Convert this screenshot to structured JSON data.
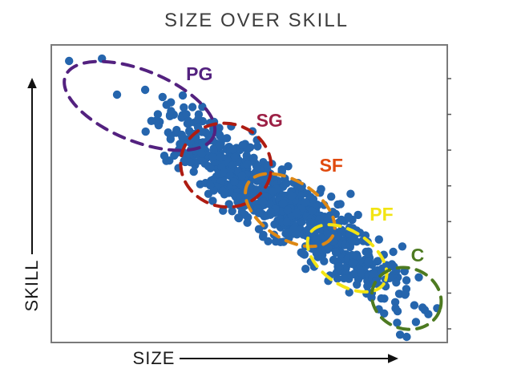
{
  "title": "SIZE OVER SKILL",
  "x_axis": {
    "label": "SIZE",
    "direction": "arrow pointing right (increasing size)"
  },
  "y_axis": {
    "label": "SKILL",
    "direction": "arrow pointing up (increasing skill)"
  },
  "style": {
    "background": "#ffffff",
    "title_color": "#3d3d3d",
    "axis_text_color": "#1c1c1c",
    "arrow_color": "#111111",
    "plot_border_color": "#7a7a7a",
    "tick_color": "#555555"
  },
  "chart_data": {
    "type": "scatter",
    "title": "SIZE OVER SKILL",
    "xlabel": "SIZE",
    "ylabel": "SKILL",
    "axes_style": "qualitative axes, no numeric tick labels; arrows mark increasing direction",
    "trend": "dense diagonal band, negative correlation: skill decreases as size increases",
    "point_color": "#2565ad",
    "point_radius_px": 5.2,
    "right_spine_ticks": {
      "side": "right",
      "count": 8
    },
    "clusters": [
      {
        "x": 0.312,
        "y": 0.752,
        "sx": 0.04,
        "sy": 0.038,
        "n": 35
      },
      {
        "x": 0.381,
        "y": 0.658,
        "sx": 0.04,
        "sy": 0.043,
        "n": 90
      },
      {
        "x": 0.457,
        "y": 0.577,
        "sx": 0.045,
        "sy": 0.046,
        "n": 140
      },
      {
        "x": 0.538,
        "y": 0.496,
        "sx": 0.049,
        "sy": 0.046,
        "n": 160
      },
      {
        "x": 0.623,
        "y": 0.423,
        "sx": 0.049,
        "sy": 0.046,
        "n": 150
      },
      {
        "x": 0.704,
        "y": 0.342,
        "sx": 0.047,
        "sy": 0.043,
        "n": 120
      },
      {
        "x": 0.781,
        "y": 0.261,
        "sx": 0.04,
        "sy": 0.04,
        "n": 75
      },
      {
        "x": 0.838,
        "y": 0.202,
        "sx": 0.036,
        "sy": 0.038,
        "n": 35
      },
      {
        "x": 0.893,
        "y": 0.132,
        "sx": 0.053,
        "sy": 0.054,
        "n": 16
      }
    ],
    "outlier_points": [
      {
        "x": 0.045,
        "y": 0.946
      },
      {
        "x": 0.128,
        "y": 0.954
      },
      {
        "x": 0.166,
        "y": 0.833
      },
      {
        "x": 0.237,
        "y": 0.849
      },
      {
        "x": 0.281,
        "y": 0.825
      }
    ],
    "groups": [
      {
        "label": "PG",
        "label_color": "#53217f",
        "ellipse_color": "#53217f",
        "ellipse": {
          "cx": 0.223,
          "cy": 0.795,
          "rx": 0.202,
          "ry": 0.119,
          "rot": 22
        },
        "label_pos": {
          "x": 0.374,
          "y": 0.903
        }
      },
      {
        "label": "SG",
        "label_color": "#9c2045",
        "ellipse_color": "#ae1c12",
        "ellipse": {
          "cx": 0.441,
          "cy": 0.596,
          "rx": 0.115,
          "ry": 0.14,
          "rot": 15
        },
        "label_pos": {
          "x": 0.551,
          "y": 0.747
        }
      },
      {
        "label": "SF",
        "label_color": "#e04a0e",
        "ellipse_color": "#dc8714",
        "ellipse": {
          "cx": 0.603,
          "cy": 0.445,
          "rx": 0.126,
          "ry": 0.097,
          "rot": 33
        },
        "label_pos": {
          "x": 0.707,
          "y": 0.596
        }
      },
      {
        "label": "PF",
        "label_color": "#f2e413",
        "ellipse_color": "#f2e413",
        "ellipse": {
          "cx": 0.747,
          "cy": 0.283,
          "rx": 0.113,
          "ry": 0.089,
          "rot": 35
        },
        "label_pos": {
          "x": 0.834,
          "y": 0.431
        }
      },
      {
        "label": "C",
        "label_color": "#4d7a21",
        "ellipse_color": "#4d7a21",
        "ellipse": {
          "cx": 0.897,
          "cy": 0.148,
          "rx": 0.089,
          "ry": 0.102,
          "rot": 20
        },
        "label_pos": {
          "x": 0.925,
          "y": 0.294
        }
      }
    ]
  }
}
